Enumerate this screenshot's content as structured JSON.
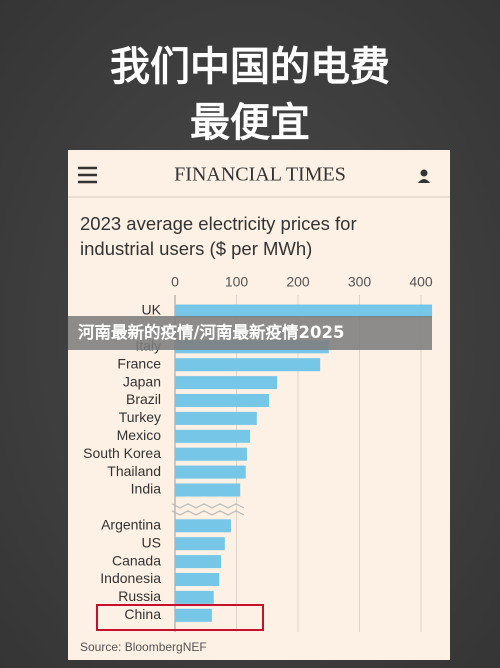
{
  "headline": [
    "我们中国的电费",
    "最便宜"
  ],
  "header": {
    "brand": "FINANCIAL TIMES"
  },
  "banner": "河南最新的疫情/河南最新疫情2025",
  "chart_data": {
    "type": "bar",
    "orientation": "horizontal",
    "title": "2023 average electricity prices for industrial users ($ per MWh)",
    "source": "Source: BloombergNEF",
    "categories": [
      "UK",
      null,
      "Italy",
      "France",
      "Japan",
      "Brazil",
      "Turkey",
      "Mexico",
      "South Korea",
      "Thailand",
      "India",
      null,
      "Argentina",
      "US",
      "Canada",
      "Indonesia",
      "Russia",
      "China"
    ],
    "values": [
      418,
      null,
      250,
      236,
      166,
      153,
      133,
      122,
      117,
      115,
      106,
      null,
      91,
      81,
      75,
      72,
      63,
      60
    ],
    "color": "#76c6e8",
    "xlim": [
      0,
      400
    ],
    "xticks": [
      0,
      100,
      200,
      300,
      400
    ],
    "grid": true
  }
}
